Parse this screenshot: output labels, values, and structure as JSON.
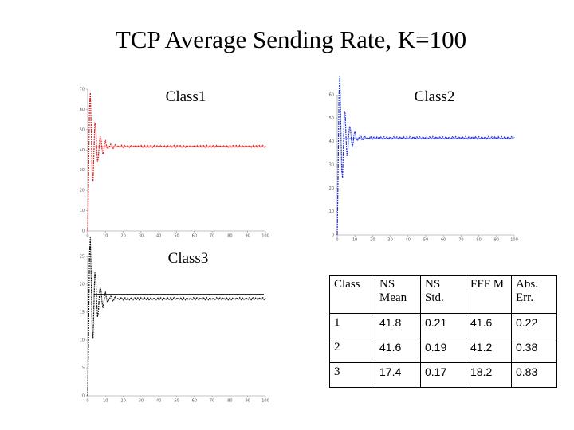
{
  "title": "TCP Average Sending Rate, K=100",
  "plots": [
    {
      "label": "Class1",
      "color": "#d62020",
      "xlim": [
        0,
        100
      ],
      "xticks": [
        0,
        10,
        20,
        30,
        40,
        50,
        60,
        70,
        80,
        90,
        100
      ],
      "ylim": [
        0,
        70
      ],
      "yticks": [
        0,
        10,
        20,
        30,
        40,
        50,
        60,
        70
      ]
    },
    {
      "label": "Class2",
      "color": "#2030d0",
      "xlim": [
        0,
        100
      ],
      "xticks": [
        0,
        10,
        20,
        30,
        40,
        50,
        60,
        70,
        80,
        90,
        100
      ],
      "ylim": [
        0,
        60
      ],
      "yticks": [
        0,
        10,
        20,
        30,
        40,
        50,
        60
      ]
    },
    {
      "label": "Class3",
      "color": "#111111",
      "xlim": [
        0,
        100
      ],
      "xticks": [
        0,
        10,
        20,
        30,
        40,
        50,
        60,
        70,
        80,
        90,
        100
      ],
      "ylim": [
        0,
        25
      ],
      "yticks": [
        0,
        5,
        10,
        15,
        20,
        25
      ]
    }
  ],
  "table": {
    "header": [
      "Class",
      "NS Mean",
      "NS Std.",
      "FFF M",
      "Abs. Err."
    ],
    "rows": [
      [
        1,
        41.8,
        0.21,
        41.6,
        0.22
      ],
      [
        2,
        41.6,
        0.19,
        41.2,
        0.38
      ],
      [
        3,
        17.4,
        0.17,
        18.2,
        0.83
      ]
    ]
  }
}
